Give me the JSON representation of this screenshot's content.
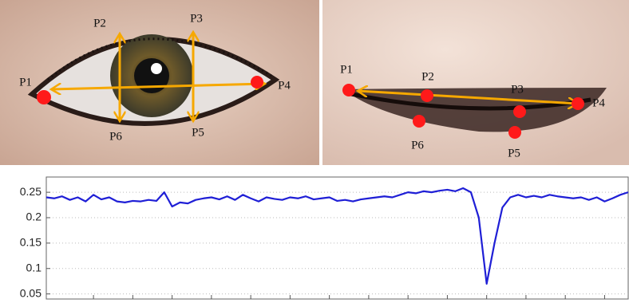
{
  "photos": [
    {
      "labels": [
        "P1",
        "P2",
        "P3",
        "P4",
        "P5",
        "P6"
      ]
    },
    {
      "labels": [
        "P1",
        "P2",
        "P3",
        "P4",
        "P5",
        "P6"
      ]
    }
  ],
  "chart_data": {
    "type": "line",
    "series": [
      {
        "color": "#1f1fd6",
        "values": [
          0.24,
          0.238,
          0.242,
          0.235,
          0.24,
          0.232,
          0.245,
          0.236,
          0.24,
          0.232,
          0.23,
          0.233,
          0.232,
          0.235,
          0.233,
          0.25,
          0.222,
          0.23,
          0.228,
          0.235,
          0.238,
          0.24,
          0.236,
          0.242,
          0.235,
          0.245,
          0.238,
          0.232,
          0.24,
          0.237,
          0.235,
          0.24,
          0.238,
          0.242,
          0.236,
          0.238,
          0.24,
          0.233,
          0.235,
          0.232,
          0.236,
          0.238,
          0.24,
          0.242,
          0.24,
          0.245,
          0.25,
          0.248,
          0.252,
          0.25,
          0.253,
          0.255,
          0.252,
          0.258,
          0.25,
          0.2,
          0.07,
          0.15,
          0.22,
          0.24,
          0.245,
          0.24,
          0.243,
          0.24,
          0.245,
          0.242,
          0.24,
          0.238,
          0.24,
          0.235,
          0.24,
          0.232,
          0.238,
          0.245,
          0.25
        ]
      }
    ],
    "xlim": [
      0,
      74
    ],
    "xticks": [
      6,
      11,
      16,
      21,
      26,
      31,
      36,
      41,
      46,
      51,
      56,
      61,
      66,
      71
    ],
    "ylim": [
      0.04,
      0.28
    ],
    "yticks": [
      0.05,
      0.1,
      0.15,
      0.2,
      0.25
    ],
    "grid": true
  }
}
